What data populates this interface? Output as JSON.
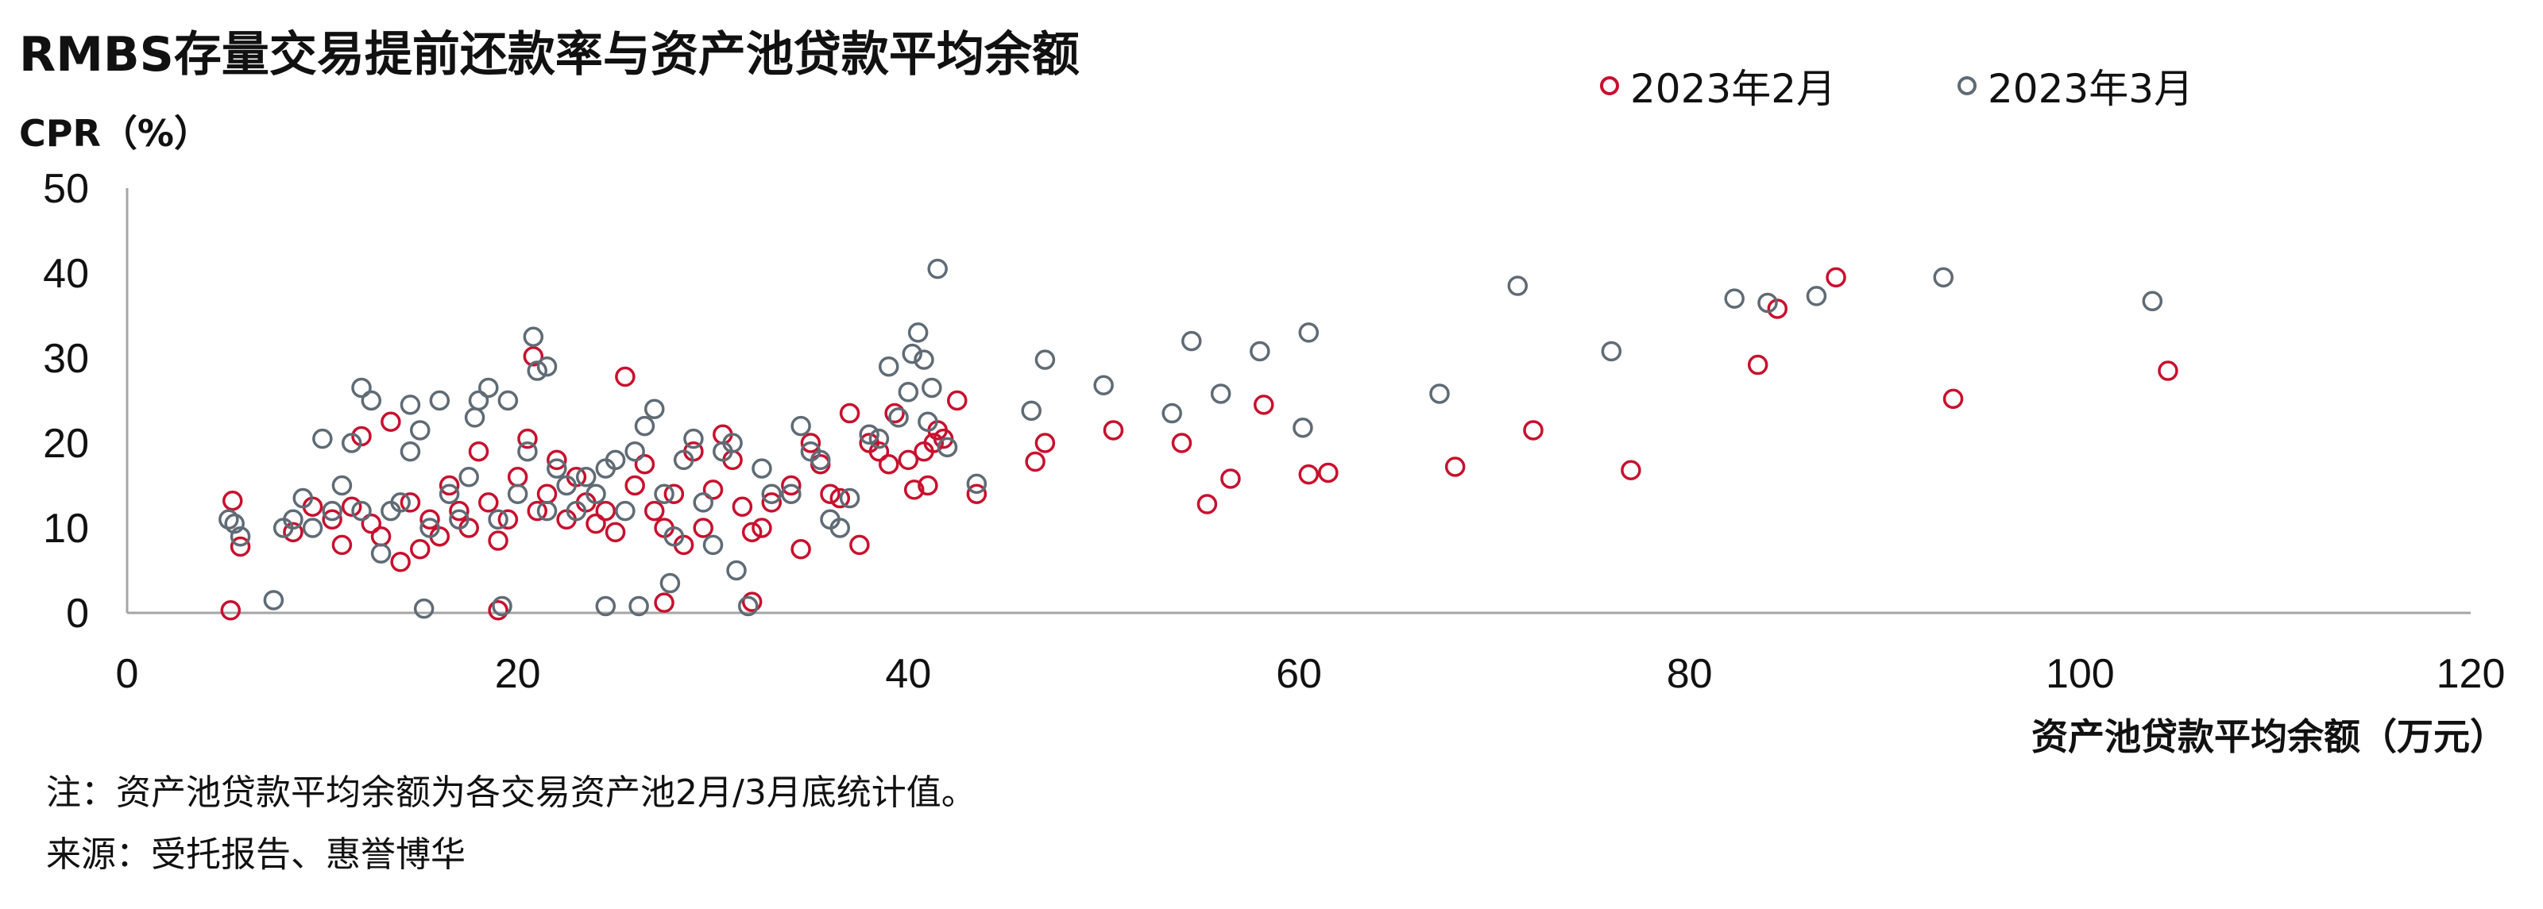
{
  "title": "RMBS存量交易提前还款率与资产池贷款平均余额",
  "ylabel": "CPR（%）",
  "xlabel": "资产池贷款平均余额（万元）",
  "note": "注：资产池贷款平均余额为各交易资产池2月/3月底统计值。",
  "source": "来源：受托报告、惠誉博华",
  "chart_data": {
    "type": "scatter",
    "title": "RMBS存量交易提前还款率与资产池贷款平均余额",
    "xlabel": "资产池贷款平均余额（万元）",
    "ylabel": "CPR（%）",
    "xlim": [
      0,
      120
    ],
    "ylim": [
      0,
      50
    ],
    "xticks": [
      "0",
      "20",
      "40",
      "60",
      "80",
      "100",
      "120"
    ],
    "yticks": [
      "0",
      "10",
      "20",
      "30",
      "40",
      "50"
    ],
    "legend_position": "top-right",
    "grid": false,
    "series": [
      {
        "name": "2023年2月",
        "color": "#C8102E",
        "points": [
          [
            5.3,
            0.3
          ],
          [
            5.4,
            13.2
          ],
          [
            5.8,
            7.8
          ],
          [
            8.5,
            9.5
          ],
          [
            9.5,
            12.5
          ],
          [
            10.5,
            11
          ],
          [
            11,
            8
          ],
          [
            11.5,
            12.5
          ],
          [
            12,
            20.8
          ],
          [
            12.5,
            10.5
          ],
          [
            13,
            9
          ],
          [
            13.5,
            22.5
          ],
          [
            14,
            6
          ],
          [
            14.5,
            13
          ],
          [
            15,
            7.5
          ],
          [
            15.5,
            11
          ],
          [
            16,
            9
          ],
          [
            16.5,
            15
          ],
          [
            17,
            12
          ],
          [
            17.5,
            10
          ],
          [
            18,
            19
          ],
          [
            18.5,
            13
          ],
          [
            19,
            8.5
          ],
          [
            19.5,
            11
          ],
          [
            19,
            0.3
          ],
          [
            20,
            16
          ],
          [
            20.5,
            20.5
          ],
          [
            20.8,
            30.2
          ],
          [
            21,
            12
          ],
          [
            21.5,
            14
          ],
          [
            22,
            18
          ],
          [
            22.5,
            11
          ],
          [
            23,
            16
          ],
          [
            23.5,
            13
          ],
          [
            24,
            10.5
          ],
          [
            24.5,
            12
          ],
          [
            25,
            9.5
          ],
          [
            25.5,
            27.8
          ],
          [
            26,
            15
          ],
          [
            26.5,
            17.5
          ],
          [
            27,
            12
          ],
          [
            27.5,
            10
          ],
          [
            28,
            14
          ],
          [
            28.5,
            8
          ],
          [
            29,
            19
          ],
          [
            29.5,
            10
          ],
          [
            30,
            14.5
          ],
          [
            30.5,
            21
          ],
          [
            31,
            18
          ],
          [
            31.5,
            12.5
          ],
          [
            32,
            9.5
          ],
          [
            32.5,
            10
          ],
          [
            27.5,
            1.2
          ],
          [
            32,
            1.3
          ],
          [
            33,
            13
          ],
          [
            34,
            15
          ],
          [
            34.5,
            7.5
          ],
          [
            35,
            20
          ],
          [
            35.5,
            17.5
          ],
          [
            36,
            14
          ],
          [
            36.5,
            13.5
          ],
          [
            37,
            23.5
          ],
          [
            37.5,
            8
          ],
          [
            38,
            20
          ],
          [
            38.5,
            19
          ],
          [
            39,
            17.5
          ],
          [
            39.3,
            23.5
          ],
          [
            40,
            18
          ],
          [
            40.3,
            14.5
          ],
          [
            40.8,
            19
          ],
          [
            41,
            15
          ],
          [
            41.3,
            20
          ],
          [
            41.5,
            21.5
          ],
          [
            41.8,
            20.5
          ],
          [
            42.5,
            25
          ],
          [
            43.5,
            14
          ],
          [
            46.5,
            17.8
          ],
          [
            47,
            20
          ],
          [
            50.5,
            21.5
          ],
          [
            54,
            20
          ],
          [
            55.3,
            12.8
          ],
          [
            56.5,
            15.8
          ],
          [
            58.2,
            24.5
          ],
          [
            60.5,
            16.3
          ],
          [
            61.5,
            16.5
          ],
          [
            68,
            17.2
          ],
          [
            72,
            21.5
          ],
          [
            77,
            16.8
          ],
          [
            83.5,
            29.2
          ],
          [
            84.5,
            35.8
          ],
          [
            87.5,
            39.5
          ],
          [
            93.5,
            25.2
          ],
          [
            104.5,
            28.5
          ]
        ]
      },
      {
        "name": "2023年3月",
        "color": "#5F6B75",
        "points": [
          [
            5.2,
            11
          ],
          [
            5.5,
            10.5
          ],
          [
            5.8,
            9
          ],
          [
            7.5,
            1.5
          ],
          [
            8,
            10
          ],
          [
            8.5,
            11
          ],
          [
            9,
            13.5
          ],
          [
            9.5,
            10
          ],
          [
            10,
            20.5
          ],
          [
            10.5,
            12
          ],
          [
            11,
            15
          ],
          [
            11.5,
            20
          ],
          [
            12,
            26.5
          ],
          [
            12,
            12
          ],
          [
            12.5,
            25
          ],
          [
            13,
            7
          ],
          [
            13.5,
            12
          ],
          [
            14,
            13
          ],
          [
            14.5,
            24.5
          ],
          [
            14.5,
            19
          ],
          [
            15,
            21.5
          ],
          [
            15.2,
            0.5
          ],
          [
            15.5,
            10
          ],
          [
            16,
            25
          ],
          [
            16.5,
            14
          ],
          [
            17,
            11
          ],
          [
            17.5,
            16
          ],
          [
            17.8,
            23
          ],
          [
            18,
            25
          ],
          [
            18.5,
            26.5
          ],
          [
            19,
            11
          ],
          [
            19.2,
            0.8
          ],
          [
            19.5,
            25
          ],
          [
            20,
            14
          ],
          [
            20.5,
            19
          ],
          [
            20.8,
            32.5
          ],
          [
            21,
            28.5
          ],
          [
            21.5,
            12
          ],
          [
            21.5,
            29
          ],
          [
            22,
            17
          ],
          [
            22.5,
            15
          ],
          [
            23,
            12
          ],
          [
            23.5,
            16
          ],
          [
            24,
            14
          ],
          [
            24.5,
            17
          ],
          [
            24.5,
            0.8
          ],
          [
            25,
            18
          ],
          [
            25.5,
            12
          ],
          [
            26,
            19
          ],
          [
            26.2,
            0.8
          ],
          [
            26.5,
            22
          ],
          [
            27,
            24
          ],
          [
            27.5,
            14
          ],
          [
            27.8,
            3.5
          ],
          [
            28,
            9
          ],
          [
            28.5,
            18
          ],
          [
            29,
            20.5
          ],
          [
            29.5,
            13
          ],
          [
            30,
            8
          ],
          [
            30.5,
            19
          ],
          [
            31,
            20
          ],
          [
            31.2,
            5
          ],
          [
            31.8,
            0.8
          ],
          [
            32.5,
            17
          ],
          [
            33,
            14
          ],
          [
            34,
            14
          ],
          [
            34.5,
            22
          ],
          [
            35,
            19
          ],
          [
            35.5,
            18
          ],
          [
            36,
            11
          ],
          [
            36.5,
            10
          ],
          [
            37,
            13.5
          ],
          [
            38,
            21
          ],
          [
            38.5,
            20.5
          ],
          [
            39,
            29
          ],
          [
            39.5,
            23
          ],
          [
            40,
            26
          ],
          [
            40.2,
            30.5
          ],
          [
            40.5,
            33
          ],
          [
            40.8,
            29.8
          ],
          [
            41,
            22.5
          ],
          [
            41.2,
            26.5
          ],
          [
            41.5,
            40.5
          ],
          [
            42,
            19.5
          ],
          [
            43.5,
            15.2
          ],
          [
            46.3,
            23.8
          ],
          [
            47,
            29.8
          ],
          [
            50,
            26.8
          ],
          [
            53.5,
            23.5
          ],
          [
            54.5,
            32
          ],
          [
            56,
            25.8
          ],
          [
            58,
            30.8
          ],
          [
            60.2,
            21.8
          ],
          [
            60.5,
            33
          ],
          [
            67.2,
            25.8
          ],
          [
            71.2,
            38.5
          ],
          [
            76,
            30.8
          ],
          [
            82.3,
            37
          ],
          [
            84,
            36.5
          ],
          [
            86.5,
            37.3
          ],
          [
            93,
            39.5
          ],
          [
            103.7,
            36.7
          ]
        ]
      }
    ]
  }
}
